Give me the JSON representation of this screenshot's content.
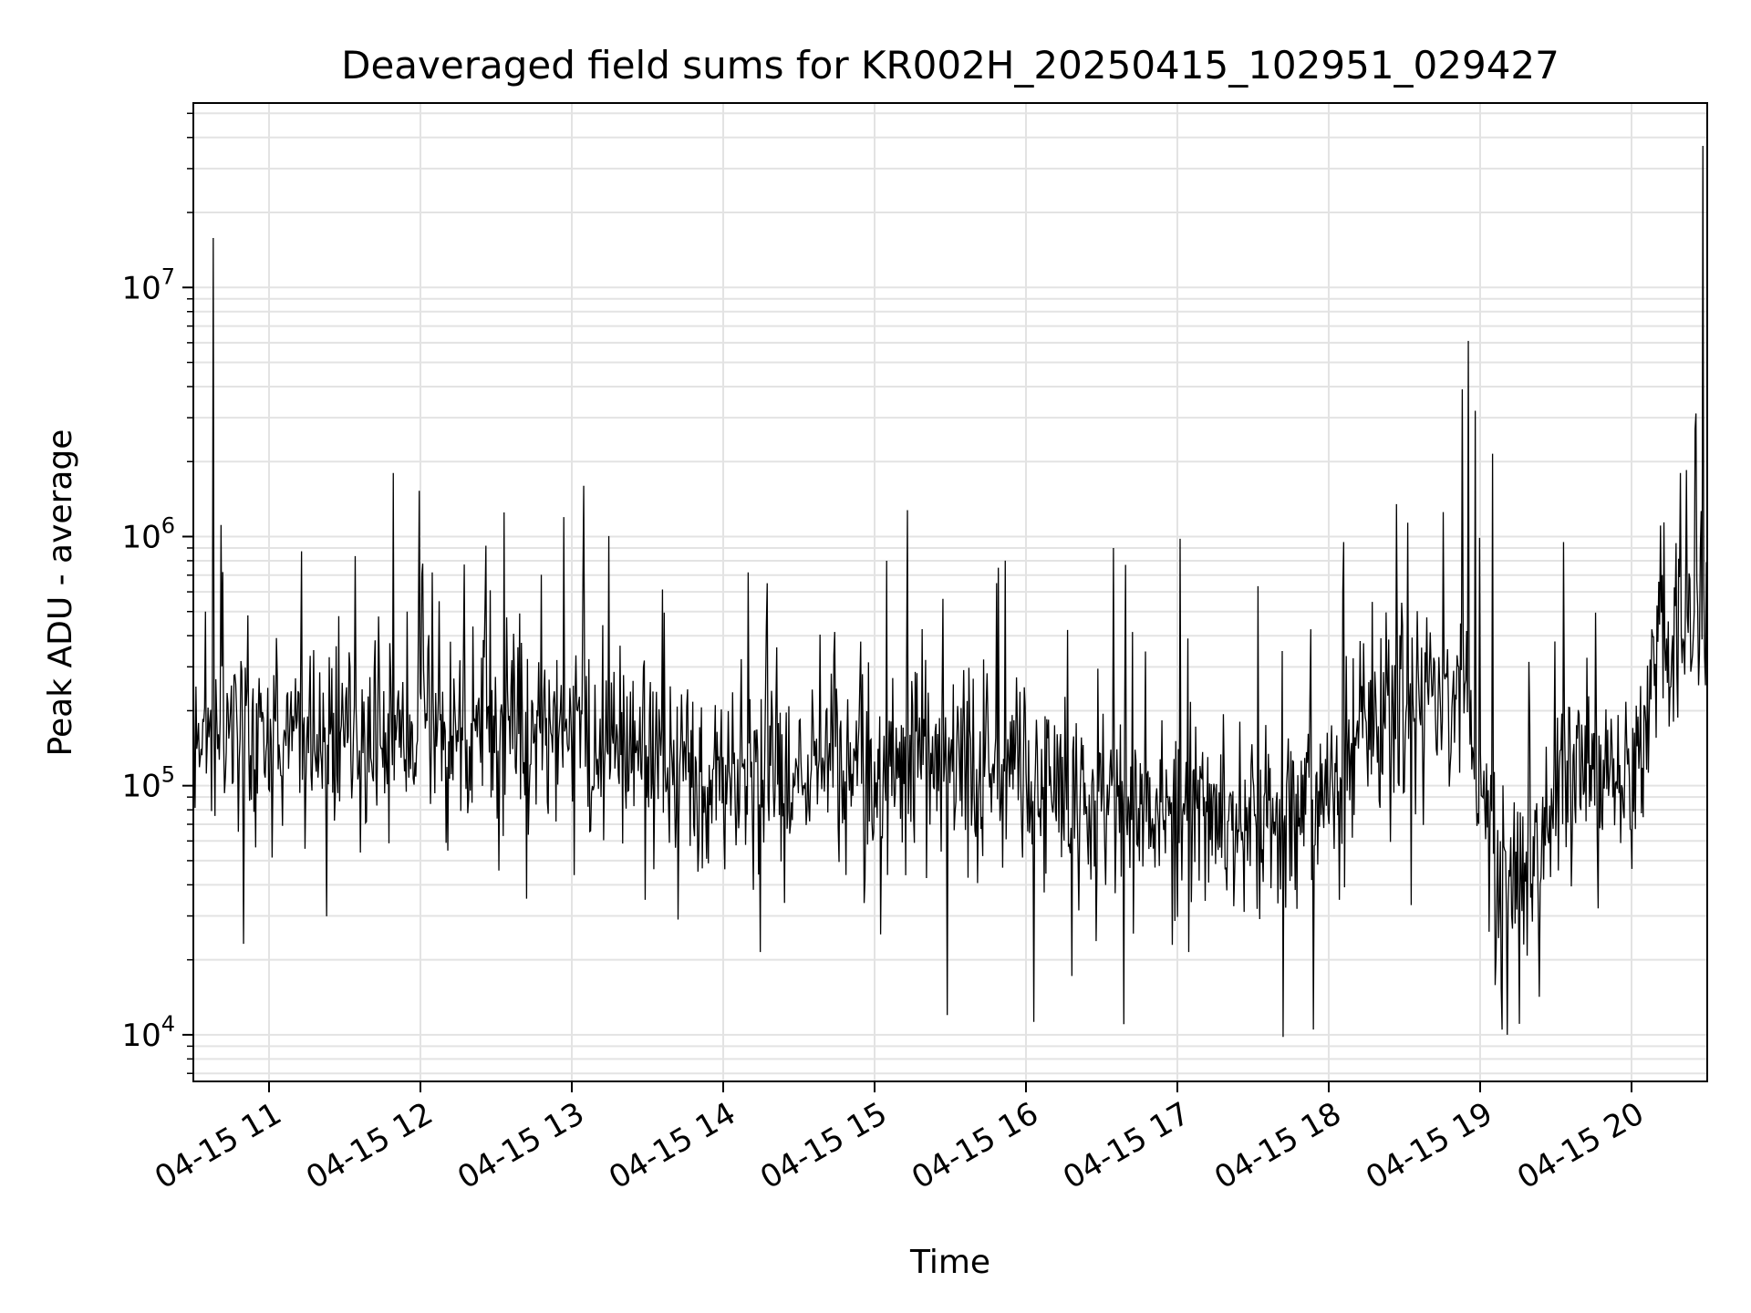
{
  "chart_data": {
    "type": "line",
    "title": "Deaveraged field sums for KR002H_20250415_102951_029427",
    "xlabel": "Time",
    "ylabel": "Peak ADU - average",
    "yscale": "log",
    "ylim": [
      6500,
      55000000
    ],
    "xlim": [
      10.5,
      20.5
    ],
    "grid": true,
    "x_ticks": [
      {
        "value": 11,
        "label": "04-15 11"
      },
      {
        "value": 12,
        "label": "04-15 12"
      },
      {
        "value": 13,
        "label": "04-15 13"
      },
      {
        "value": 14,
        "label": "04-15 14"
      },
      {
        "value": 15,
        "label": "04-15 15"
      },
      {
        "value": 16,
        "label": "04-15 16"
      },
      {
        "value": 17,
        "label": "04-15 17"
      },
      {
        "value": 18,
        "label": "04-15 18"
      },
      {
        "value": 19,
        "label": "04-15 19"
      },
      {
        "value": 20,
        "label": "04-15 20"
      }
    ],
    "y_ticks": [
      {
        "value": 10000,
        "base": "10",
        "exp": "4"
      },
      {
        "value": 100000,
        "base": "10",
        "exp": "5"
      },
      {
        "value": 1000000,
        "base": "10",
        "exp": "6"
      },
      {
        "value": 10000000,
        "base": "10",
        "exp": "7"
      }
    ],
    "baseline": {
      "x": [
        10.5,
        11.0,
        12.0,
        13.0,
        14.0,
        15.0,
        16.0,
        17.0,
        17.7,
        18.0,
        18.4,
        18.9,
        19.1,
        19.3,
        19.6,
        20.0,
        20.2,
        20.5
      ],
      "y": [
        180000,
        170000,
        160000,
        170000,
        100000,
        120000,
        110000,
        80000,
        70000,
        100000,
        220000,
        250000,
        45000,
        50000,
        130000,
        90000,
        400000,
        520000
      ]
    },
    "spikes": [
      {
        "x": 10.52,
        "y": 250000
      },
      {
        "x": 10.58,
        "y": 500000
      },
      {
        "x": 10.63,
        "y": 15800000
      },
      {
        "x": 11.82,
        "y": 1800000
      },
      {
        "x": 12.55,
        "y": 1250000
      },
      {
        "x": 13.08,
        "y": 1600000
      },
      {
        "x": 14.29,
        "y": 650000
      },
      {
        "x": 15.08,
        "y": 800000
      },
      {
        "x": 15.48,
        "y": 12000
      },
      {
        "x": 15.82,
        "y": 750000
      },
      {
        "x": 16.58,
        "y": 900000
      },
      {
        "x": 17.02,
        "y": 980000
      },
      {
        "x": 17.7,
        "y": 9800
      },
      {
        "x": 17.9,
        "y": 10500
      },
      {
        "x": 18.1,
        "y": 950000
      },
      {
        "x": 18.45,
        "y": 1350000
      },
      {
        "x": 18.88,
        "y": 3900000
      },
      {
        "x": 18.92,
        "y": 6100000
      },
      {
        "x": 18.97,
        "y": 3200000
      },
      {
        "x": 19.08,
        "y": 2150000
      },
      {
        "x": 19.18,
        "y": 10000
      },
      {
        "x": 19.55,
        "y": 950000
      },
      {
        "x": 20.2,
        "y": 700000
      },
      {
        "x": 20.32,
        "y": 1800000
      },
      {
        "x": 20.36,
        "y": 1850000
      },
      {
        "x": 20.42,
        "y": 2700000
      },
      {
        "x": 20.47,
        "y": 37000000
      }
    ],
    "sample_count": 1750,
    "series_color": "#000000"
  }
}
